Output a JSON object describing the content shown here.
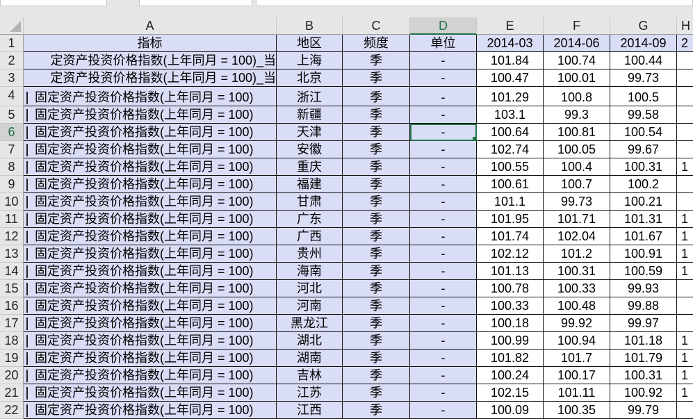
{
  "columns": [
    "A",
    "B",
    "C",
    "D",
    "E",
    "F",
    "G",
    "H"
  ],
  "selected_cell": "D6",
  "header": {
    "row": "1",
    "cols": [
      "指标",
      "地区",
      "频度",
      "单位",
      "2014-03",
      "2014-06",
      "2014-09",
      "2"
    ]
  },
  "rows": [
    {
      "n": "2",
      "a": "定资产投资价格指数(上年同月 = 100)_当",
      "b": "上海",
      "c": "季",
      "d": "-",
      "e": "101.84",
      "f": "100.74",
      "g": "100.44",
      "h": ""
    },
    {
      "n": "3",
      "a": "定资产投资价格指数(上年同月 = 100)_当",
      "b": "北京",
      "c": "季",
      "d": "-",
      "e": "100.47",
      "f": "100.01",
      "g": "99.73",
      "h": ""
    },
    {
      "n": "4",
      "a": "固定资产投资价格指数(上年同月 = 100)",
      "b": "浙江",
      "c": "季",
      "d": "-",
      "e": "101.29",
      "f": "100.8",
      "g": "100.5",
      "h": ""
    },
    {
      "n": "5",
      "a": "固定资产投资价格指数(上年同月 = 100)",
      "b": "新疆",
      "c": "季",
      "d": "-",
      "e": "103.1",
      "f": "99.3",
      "g": "99.58",
      "h": ""
    },
    {
      "n": "6",
      "a": "固定资产投资价格指数(上年同月 = 100)",
      "b": "天津",
      "c": "季",
      "d": "-",
      "e": "100.64",
      "f": "100.81",
      "g": "100.54",
      "h": ""
    },
    {
      "n": "7",
      "a": "固定资产投资价格指数(上年同月 = 100)",
      "b": "安徽",
      "c": "季",
      "d": "-",
      "e": "102.74",
      "f": "100.05",
      "g": "99.67",
      "h": ""
    },
    {
      "n": "8",
      "a": "固定资产投资价格指数(上年同月 = 100)",
      "b": "重庆",
      "c": "季",
      "d": "-",
      "e": "100.55",
      "f": "100.4",
      "g": "100.31",
      "h": "1"
    },
    {
      "n": "9",
      "a": "固定资产投资价格指数(上年同月 = 100)",
      "b": "福建",
      "c": "季",
      "d": "-",
      "e": "100.61",
      "f": "100.7",
      "g": "100.2",
      "h": ""
    },
    {
      "n": "10",
      "a": "固定资产投资价格指数(上年同月 = 100)",
      "b": "甘肃",
      "c": "季",
      "d": "-",
      "e": "101.1",
      "f": "99.73",
      "g": "100.21",
      "h": ""
    },
    {
      "n": "11",
      "a": "固定资产投资价格指数(上年同月 = 100)",
      "b": "广东",
      "c": "季",
      "d": "-",
      "e": "101.95",
      "f": "101.71",
      "g": "101.31",
      "h": "1"
    },
    {
      "n": "12",
      "a": "固定资产投资价格指数(上年同月 = 100)",
      "b": "广西",
      "c": "季",
      "d": "-",
      "e": "101.74",
      "f": "102.04",
      "g": "101.67",
      "h": "1"
    },
    {
      "n": "13",
      "a": "固定资产投资价格指数(上年同月 = 100)",
      "b": "贵州",
      "c": "季",
      "d": "-",
      "e": "102.12",
      "f": "101.2",
      "g": "100.91",
      "h": "1"
    },
    {
      "n": "14",
      "a": "固定资产投资价格指数(上年同月 = 100)",
      "b": "海南",
      "c": "季",
      "d": "-",
      "e": "101.13",
      "f": "100.31",
      "g": "100.59",
      "h": "1"
    },
    {
      "n": "15",
      "a": "固定资产投资价格指数(上年同月 = 100)",
      "b": "河北",
      "c": "季",
      "d": "-",
      "e": "100.78",
      "f": "100.33",
      "g": "99.93",
      "h": ""
    },
    {
      "n": "16",
      "a": "固定资产投资价格指数(上年同月 = 100)",
      "b": "河南",
      "c": "季",
      "d": "-",
      "e": "100.33",
      "f": "100.48",
      "g": "99.88",
      "h": ""
    },
    {
      "n": "17",
      "a": "固定资产投资价格指数(上年同月 = 100)",
      "b": "黑龙江",
      "c": "季",
      "d": "-",
      "e": "100.18",
      "f": "99.92",
      "g": "99.97",
      "h": ""
    },
    {
      "n": "18",
      "a": "固定资产投资价格指数(上年同月 = 100)",
      "b": "湖北",
      "c": "季",
      "d": "-",
      "e": "100.99",
      "f": "100.94",
      "g": "101.18",
      "h": "1"
    },
    {
      "n": "19",
      "a": "固定资产投资价格指数(上年同月 = 100)",
      "b": "湖南",
      "c": "季",
      "d": "-",
      "e": "101.82",
      "f": "101.7",
      "g": "101.79",
      "h": "1"
    },
    {
      "n": "20",
      "a": "固定资产投资价格指数(上年同月 = 100)",
      "b": "吉林",
      "c": "季",
      "d": "-",
      "e": "100.24",
      "f": "100.17",
      "g": "100.31",
      "h": "1"
    },
    {
      "n": "21",
      "a": "固定资产投资价格指数(上年同月 = 100)",
      "b": "江苏",
      "c": "季",
      "d": "-",
      "e": "102.15",
      "f": "101.11",
      "g": "100.92",
      "h": "1"
    },
    {
      "n": "22",
      "a": "固定资产投资价格指数(上年同月 = 100)",
      "b": "江西",
      "c": "季",
      "d": "-",
      "e": "100.09",
      "f": "100.35",
      "g": "99.79",
      "h": ""
    }
  ],
  "colors": {
    "accent": "#217346",
    "highlight": "#d9ddf5"
  }
}
